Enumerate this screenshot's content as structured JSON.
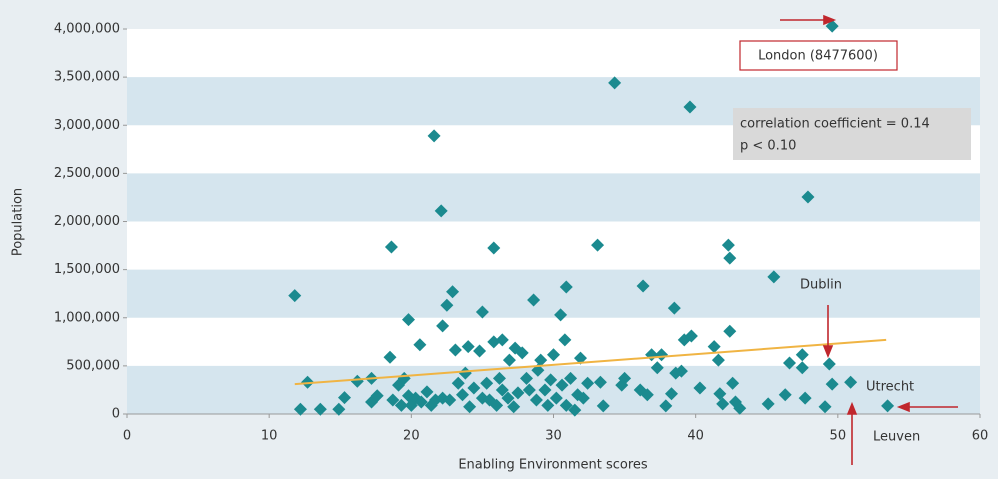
{
  "chart_data": {
    "type": "scatter",
    "xlabel": "Enabling Environment scores",
    "ylabel": "Population",
    "xlim": [
      0,
      60
    ],
    "xticks": [
      0,
      10,
      20,
      30,
      40,
      50,
      60
    ],
    "ylim": [
      0,
      4000000
    ],
    "yticks": [
      {
        "value": 0,
        "label": "0"
      },
      {
        "value": 500000,
        "label": "500,000"
      },
      {
        "value": 1000000,
        "label": "1,000,000"
      },
      {
        "value": 1500000,
        "label": "1,500,000"
      },
      {
        "value": 2000000,
        "label": "2,000,000"
      },
      {
        "value": 2500000,
        "label": "2,500,000"
      },
      {
        "value": 3000000,
        "label": "3,000,000"
      },
      {
        "value": 3500000,
        "label": "3,500,000"
      },
      {
        "value": 4000000,
        "label": "4,000,000"
      }
    ],
    "grid": true,
    "color": "#1b8a8f",
    "x": [
      11.8,
      12.2,
      12.7,
      13.6,
      14.9,
      15.3,
      16.2,
      17.2,
      17.2,
      17.6,
      18.5,
      18.6,
      18.7,
      19.1,
      19.3,
      19.5,
      19.8,
      19.8,
      20.0,
      20.3,
      20.6,
      20.7,
      21.1,
      21.4,
      21.6,
      21.7,
      22.1,
      22.2,
      22.2,
      22.5,
      22.7,
      22.9,
      23.1,
      23.3,
      23.6,
      23.8,
      24.0,
      24.1,
      24.4,
      24.8,
      25.0,
      25.0,
      25.3,
      25.5,
      25.8,
      25.8,
      26.0,
      26.2,
      26.4,
      26.4,
      26.8,
      26.9,
      27.2,
      27.3,
      27.5,
      27.8,
      28.1,
      28.3,
      28.6,
      28.8,
      28.9,
      29.1,
      29.4,
      29.6,
      29.8,
      30.0,
      30.2,
      30.5,
      30.6,
      30.8,
      30.9,
      30.9,
      31.2,
      31.5,
      31.7,
      31.9,
      32.1,
      32.4,
      33.1,
      33.3,
      33.5,
      34.3,
      34.8,
      35.0,
      36.1,
      36.3,
      36.6,
      36.9,
      37.3,
      37.6,
      37.9,
      38.3,
      38.5,
      38.6,
      39.0,
      39.2,
      39.6,
      39.7,
      40.3,
      41.3,
      41.6,
      41.7,
      41.9,
      42.3,
      42.4,
      42.4,
      42.6,
      42.8,
      43.1,
      45.1,
      45.5,
      46.3,
      46.6,
      47.5,
      47.5,
      47.7,
      47.9,
      49.1,
      49.4,
      49.6,
      50.9,
      49.6,
      53.5
    ],
    "values": [
      1230000,
      50000,
      330000,
      50000,
      50000,
      170000,
      340000,
      370000,
      125000,
      190000,
      590000,
      1735000,
      145000,
      300000,
      90000,
      370000,
      980000,
      190000,
      90000,
      165000,
      720000,
      125000,
      230000,
      90000,
      2890000,
      145000,
      2110000,
      915000,
      165000,
      1130000,
      145000,
      1270000,
      665000,
      320000,
      200000,
      425000,
      700000,
      75000,
      270000,
      655000,
      1060000,
      165000,
      320000,
      145000,
      1725000,
      750000,
      90000,
      370000,
      770000,
      250000,
      165000,
      560000,
      75000,
      685000,
      220000,
      635000,
      370000,
      250000,
      1185000,
      145000,
      455000,
      560000,
      250000,
      90000,
      355000,
      615000,
      165000,
      1030000,
      300000,
      770000,
      1320000,
      90000,
      370000,
      40000,
      200000,
      580000,
      165000,
      320000,
      1755000,
      330000,
      85000,
      3440000,
      300000,
      370000,
      250000,
      1330000,
      200000,
      615000,
      480000,
      615000,
      85000,
      210000,
      1100000,
      425000,
      445000,
      770000,
      3190000,
      810000,
      270000,
      700000,
      560000,
      210000,
      105000,
      1755000,
      1620000,
      860000,
      320000,
      125000,
      60000,
      105000,
      1425000,
      200000,
      530000,
      615000,
      480000,
      165000,
      2255000,
      75000,
      520000,
      310000,
      330000,
      4030000,
      85000
    ],
    "trend": {
      "color": "#f0b443",
      "x": [
        11.8,
        53.4
      ],
      "values": [
        310000,
        770000
      ]
    },
    "annotations": {
      "london": "London (8477600)",
      "correlation": "correlation coefficient = 0.14",
      "p": "p < 0.10",
      "dublin": "Dublin",
      "utrecht": "Utrecht",
      "leuven": "Leuven"
    }
  }
}
